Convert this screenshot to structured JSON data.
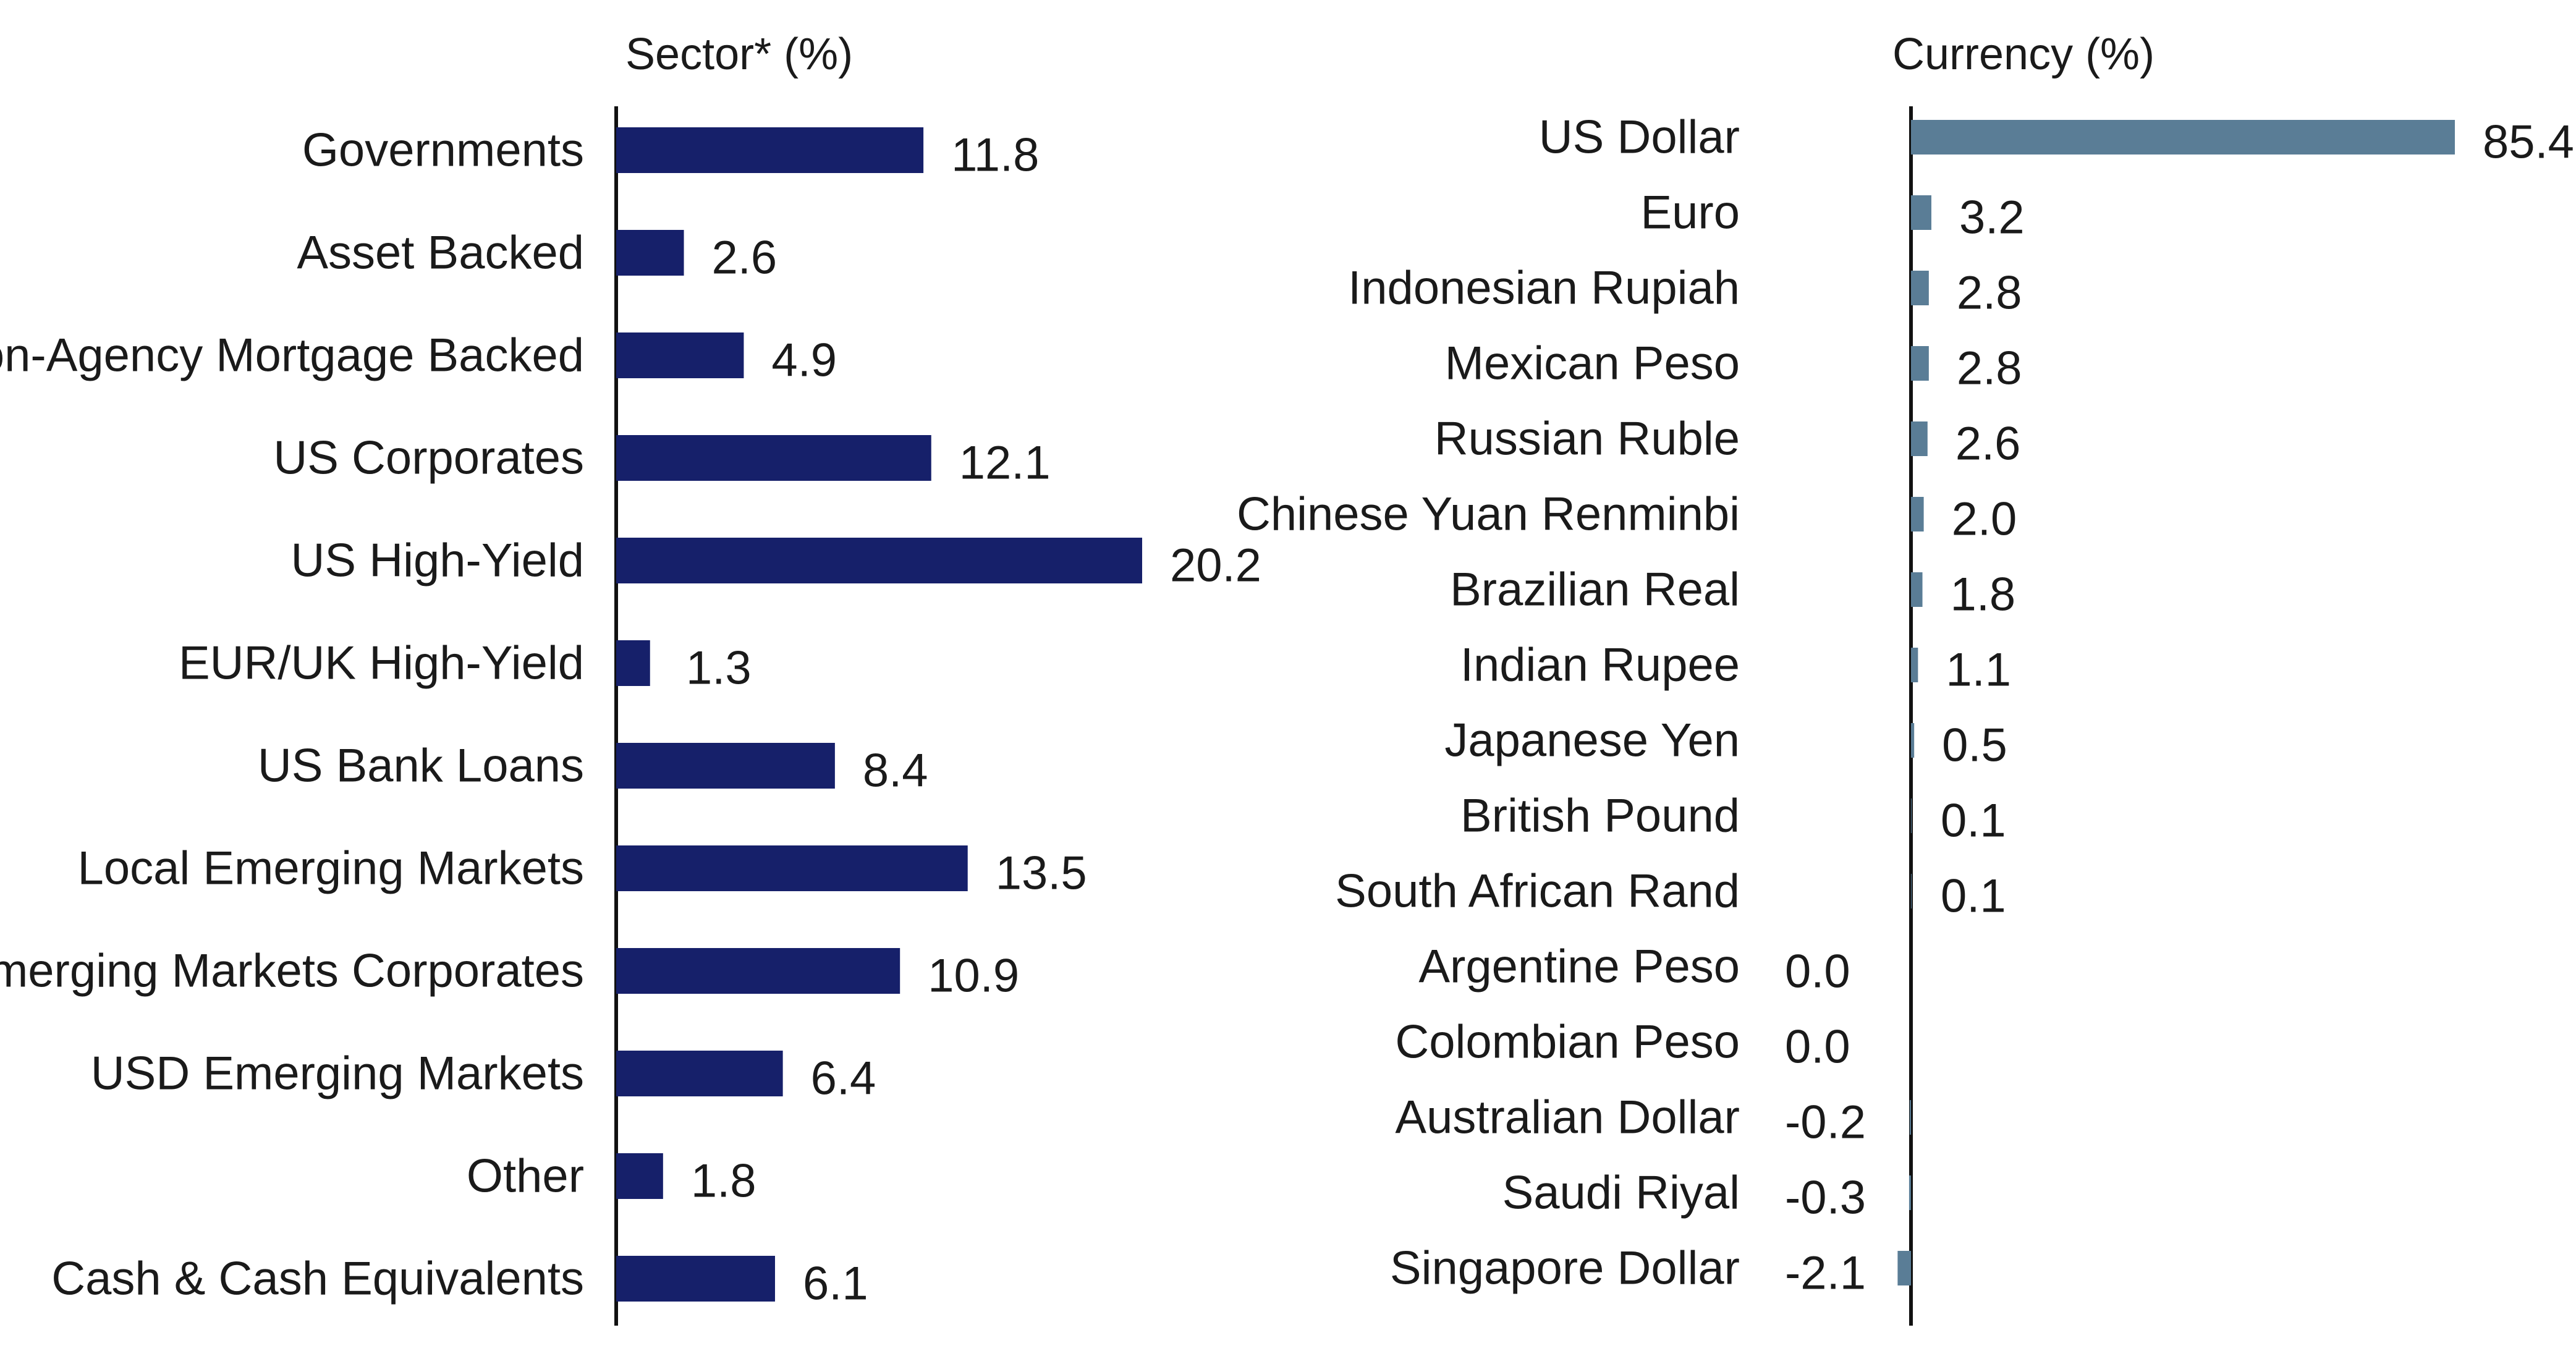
{
  "chart_data": [
    {
      "type": "bar",
      "orientation": "horizontal",
      "title": "Sector* (%)",
      "categories": [
        "Governments",
        "Asset Backed",
        "Non-Agency Mortgage Backed",
        "US Corporates",
        "US High-Yield",
        "EUR/UK High-Yield",
        "US Bank Loans",
        "Local Emerging Markets",
        "Emerging Markets Corporates",
        "USD Emerging Markets",
        "Other",
        "Cash & Cash Equivalents"
      ],
      "values": [
        11.8,
        2.6,
        4.9,
        12.1,
        20.2,
        1.3,
        8.4,
        13.5,
        10.9,
        6.4,
        1.8,
        6.1
      ],
      "value_labels": [
        "11.8",
        "2.6",
        "4.9",
        "12.1",
        "20.2",
        "1.3",
        "8.4",
        "13.5",
        "10.9",
        "6.4",
        "1.8",
        "6.1"
      ],
      "xlim": [
        0,
        20.2
      ],
      "grid": false,
      "color": "#16206a"
    },
    {
      "type": "bar",
      "orientation": "horizontal",
      "title": "Currency (%)",
      "categories": [
        "US Dollar",
        "Euro",
        "Indonesian Rupiah",
        "Mexican Peso",
        "Russian Ruble",
        "Chinese Yuan Renminbi",
        "Brazilian Real",
        "Indian Rupee",
        "Japanese Yen",
        "British Pound",
        "South African Rand",
        "Argentine Peso",
        "Colombian Peso",
        "Australian Dollar",
        "Saudi Riyal",
        "Singapore Dollar"
      ],
      "values": [
        85.4,
        3.2,
        2.8,
        2.8,
        2.6,
        2.0,
        1.8,
        1.1,
        0.5,
        0.1,
        0.1,
        0.0,
        0.0,
        -0.2,
        -0.3,
        -2.1
      ],
      "value_labels": [
        "85.4",
        "3.2",
        "2.8",
        "2.8",
        "2.6",
        "2.0",
        "1.8",
        "1.1",
        "0.5",
        "0.1",
        "0.1",
        "0.0",
        "0.0",
        "-0.2",
        "-0.3",
        "-2.1"
      ],
      "xlim": [
        -2.1,
        85.4
      ],
      "grid": false,
      "color": "#5a7d96"
    }
  ]
}
